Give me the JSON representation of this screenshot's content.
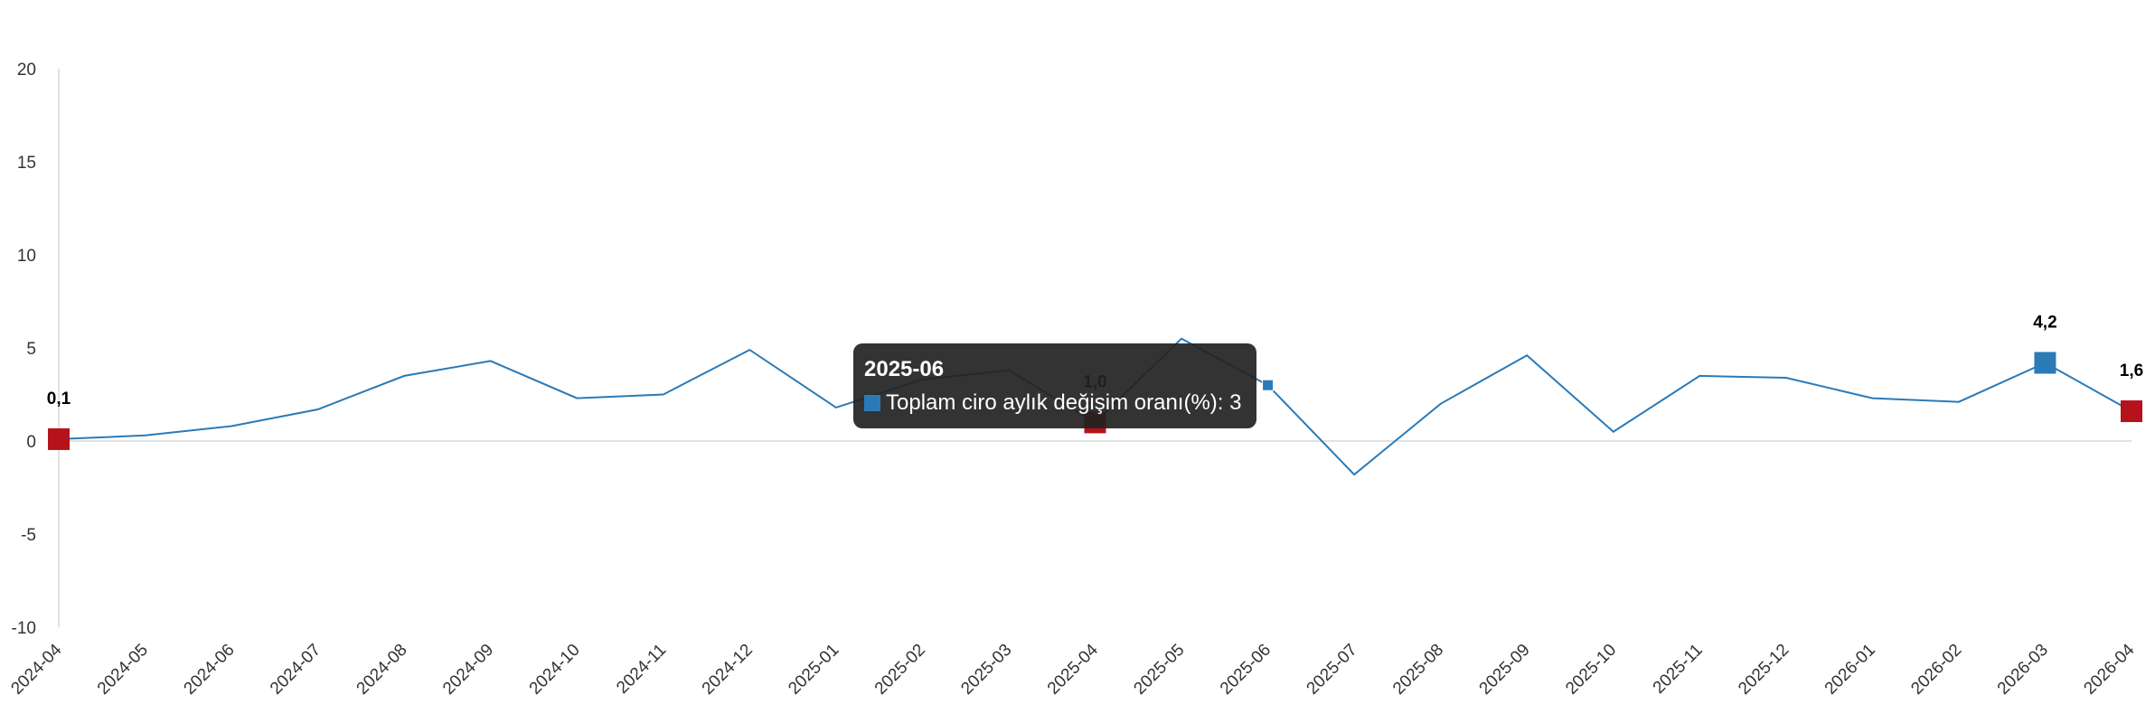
{
  "chart_data": {
    "type": "line",
    "title": "",
    "xlabel": "",
    "ylabel": "",
    "categories": [
      "2024-04",
      "2024-05",
      "2024-06",
      "2024-07",
      "2024-08",
      "2024-09",
      "2024-10",
      "2024-11",
      "2024-12",
      "2025-01",
      "2025-02",
      "2025-03",
      "2025-04",
      "2025-05",
      "2025-06",
      "2025-07",
      "2025-08",
      "2025-09",
      "2025-10",
      "2025-11",
      "2025-12",
      "2026-01",
      "2026-02",
      "2026-03",
      "2026-04"
    ],
    "series": [
      {
        "name": "Toplam ciro aylık değişim oranı(%)",
        "color": "#2a7ab8",
        "values": [
          0.1,
          0.3,
          0.8,
          1.7,
          3.5,
          4.3,
          2.3,
          2.5,
          4.9,
          1.8,
          3.3,
          3.8,
          1.0,
          5.5,
          3.0,
          -1.8,
          2.0,
          4.6,
          0.5,
          3.5,
          3.4,
          2.3,
          2.1,
          4.2,
          1.6
        ]
      }
    ],
    "ylim": [
      -10,
      20
    ],
    "yticks": [
      -10,
      -5,
      0,
      5,
      10,
      15,
      20
    ],
    "grid": false,
    "zero_line": true,
    "markers": [
      {
        "index": 0,
        "label": "0,1",
        "color": "#b5121b"
      },
      {
        "index": 12,
        "label": "1,0",
        "color": "#b5121b"
      },
      {
        "index": 23,
        "label": "4,2",
        "color": "#2a7ab8"
      },
      {
        "index": 24,
        "label": "1,6",
        "color": "#b5121b"
      }
    ],
    "hover": {
      "index": 14
    }
  },
  "tooltip": {
    "title": "2025-06",
    "series_label": "Toplam ciro aylık değişim oranı(%)",
    "value": "3",
    "color": "#2a7ab8"
  }
}
